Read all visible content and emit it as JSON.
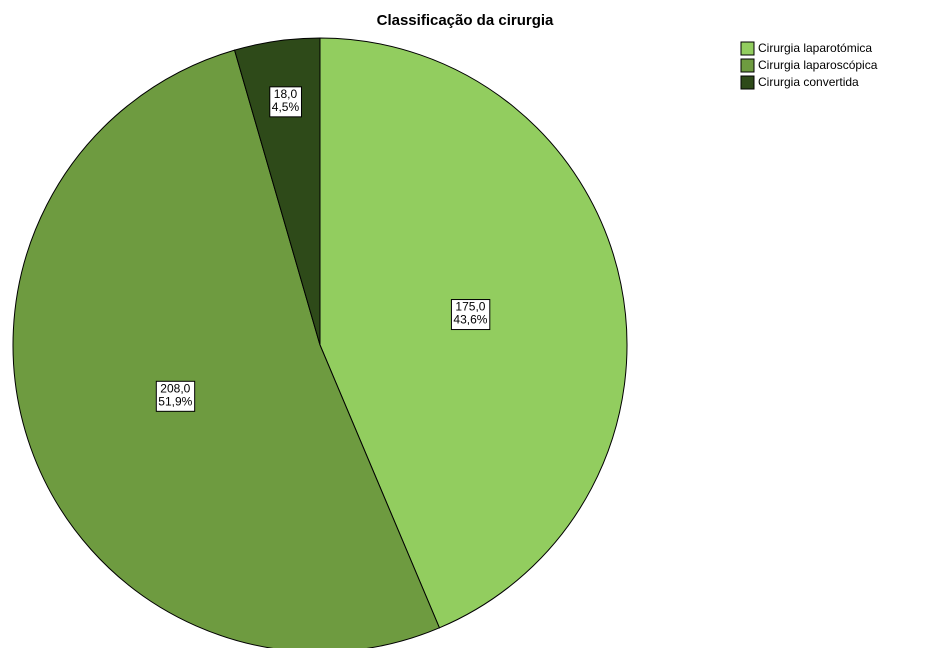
{
  "chart_data": {
    "type": "pie",
    "title": "Classificação da cirurgia",
    "categories": [
      "Cirurgia laparotómica",
      "Cirurgia laparoscópica",
      "Cirurgia convertida"
    ],
    "values": [
      175,
      208,
      18
    ],
    "value_labels": [
      "175,0",
      "208,0",
      "18,0"
    ],
    "percentages": [
      43.6,
      51.9,
      4.5
    ],
    "percentage_labels": [
      "43,6%",
      "51,9%",
      "4,5%"
    ],
    "colors": [
      "#92cd5f",
      "#6e9b40",
      "#2e4a19"
    ],
    "legend": "top-right"
  }
}
